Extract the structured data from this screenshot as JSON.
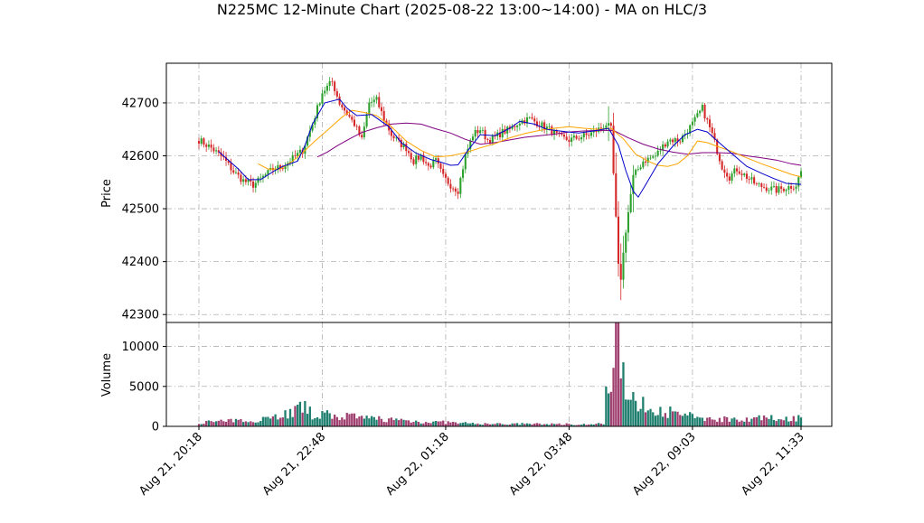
{
  "chart_data": {
    "type": "candlestick",
    "title": "N225MC 12-Minute Chart (2025-08-22 13:00~14:00) - MA on HLC/3",
    "price_panel": {
      "ylabel": "Price",
      "ylim": [
        42285,
        42775
      ],
      "yticks": [
        42300,
        42400,
        42500,
        42600,
        42700
      ],
      "grid": true
    },
    "volume_panel": {
      "ylabel": "Volume",
      "ylim": [
        0,
        13000
      ],
      "yticks": [
        0,
        5000,
        10000
      ],
      "grid": true
    },
    "x_tick_labels": [
      "Aug 21, 20:18",
      "Aug 21, 22:48",
      "Aug 22, 01:18",
      "Aug 22, 03:48",
      "Aug 22, 09:03",
      "Aug 22, 11:33"
    ],
    "colors": {
      "up": "#2ca02c",
      "down": "#d62728",
      "ma_short": "#0000cc",
      "ma_mid": "#ffa500",
      "ma_long": "#800080",
      "vol_up": "#1f7f6f",
      "vol_down": "#a04070"
    },
    "close_anchors": [
      [
        0,
        42630
      ],
      [
        5,
        42615
      ],
      [
        10,
        42595
      ],
      [
        14,
        42570
      ],
      [
        18,
        42553
      ],
      [
        22,
        42545
      ],
      [
        26,
        42560
      ],
      [
        30,
        42575
      ],
      [
        34,
        42580
      ],
      [
        38,
        42595
      ],
      [
        42,
        42610
      ],
      [
        46,
        42660
      ],
      [
        50,
        42720
      ],
      [
        54,
        42740
      ],
      [
        57,
        42700
      ],
      [
        60,
        42680
      ],
      [
        63,
        42660
      ],
      [
        66,
        42630
      ],
      [
        69,
        42700
      ],
      [
        72,
        42705
      ],
      [
        75,
        42670
      ],
      [
        78,
        42640
      ],
      [
        81,
        42625
      ],
      [
        84,
        42615
      ],
      [
        87,
        42590
      ],
      [
        90,
        42600
      ],
      [
        93,
        42580
      ],
      [
        96,
        42590
      ],
      [
        99,
        42560
      ],
      [
        102,
        42545
      ],
      [
        105,
        42535
      ],
      [
        108,
        42600
      ],
      [
        111,
        42640
      ],
      [
        114,
        42650
      ],
      [
        117,
        42630
      ],
      [
        120,
        42635
      ],
      [
        123,
        42645
      ],
      [
        126,
        42650
      ],
      [
        130,
        42665
      ],
      [
        134,
        42670
      ],
      [
        138,
        42660
      ],
      [
        142,
        42650
      ],
      [
        146,
        42635
      ],
      [
        150,
        42630
      ],
      [
        154,
        42635
      ],
      [
        158,
        42640
      ],
      [
        162,
        42650
      ],
      [
        165,
        42660
      ],
      [
        167,
        42650
      ],
      [
        169,
        42480
      ],
      [
        170,
        42390
      ],
      [
        171,
        42370
      ],
      [
        173,
        42460
      ],
      [
        176,
        42560
      ],
      [
        180,
        42590
      ],
      [
        185,
        42600
      ],
      [
        190,
        42630
      ],
      [
        195,
        42630
      ],
      [
        200,
        42660
      ],
      [
        204,
        42690
      ],
      [
        208,
        42640
      ],
      [
        212,
        42580
      ],
      [
        215,
        42560
      ],
      [
        218,
        42575
      ],
      [
        222,
        42560
      ],
      [
        226,
        42545
      ],
      [
        230,
        42540
      ],
      [
        234,
        42535
      ],
      [
        238,
        42540
      ],
      [
        242,
        42545
      ],
      [
        244,
        42570
      ]
    ],
    "ma_short_points": [
      [
        8,
        42608
      ],
      [
        16,
        42575
      ],
      [
        20,
        42555
      ],
      [
        25,
        42555
      ],
      [
        30,
        42570
      ],
      [
        34,
        42580
      ],
      [
        40,
        42590
      ],
      [
        43,
        42620
      ],
      [
        46,
        42660
      ],
      [
        51,
        42700
      ],
      [
        57,
        42707
      ],
      [
        60,
        42690
      ],
      [
        64,
        42676
      ],
      [
        70,
        42678
      ],
      [
        77,
        42655
      ],
      [
        82,
        42625
      ],
      [
        88,
        42605
      ],
      [
        94,
        42593
      ],
      [
        98,
        42588
      ],
      [
        102,
        42582
      ],
      [
        105,
        42583
      ],
      [
        109,
        42610
      ],
      [
        114,
        42640
      ],
      [
        120,
        42638
      ],
      [
        126,
        42652
      ],
      [
        130,
        42665
      ],
      [
        136,
        42660
      ],
      [
        141,
        42650
      ],
      [
        148,
        42646
      ],
      [
        154,
        42643
      ],
      [
        160,
        42647
      ],
      [
        166,
        42652
      ],
      [
        170,
        42620
      ],
      [
        173,
        42572
      ],
      [
        176,
        42533
      ],
      [
        178,
        42522
      ],
      [
        181,
        42545
      ],
      [
        186,
        42585
      ],
      [
        192,
        42618
      ],
      [
        197,
        42640
      ],
      [
        202,
        42650
      ],
      [
        206,
        42645
      ],
      [
        212,
        42620
      ],
      [
        217,
        42600
      ],
      [
        222,
        42580
      ],
      [
        228,
        42567
      ],
      [
        233,
        42557
      ],
      [
        238,
        42548
      ],
      [
        244,
        42546
      ]
    ],
    "ma_mid_points": [
      [
        24,
        42585
      ],
      [
        28,
        42575
      ],
      [
        33,
        42575
      ],
      [
        38,
        42590
      ],
      [
        43,
        42610
      ],
      [
        47,
        42628
      ],
      [
        52,
        42648
      ],
      [
        58,
        42673
      ],
      [
        62,
        42686
      ],
      [
        67,
        42682
      ],
      [
        72,
        42676
      ],
      [
        78,
        42655
      ],
      [
        84,
        42628
      ],
      [
        90,
        42610
      ],
      [
        96,
        42598
      ],
      [
        102,
        42600
      ],
      [
        108,
        42606
      ],
      [
        114,
        42615
      ],
      [
        120,
        42623
      ],
      [
        126,
        42634
      ],
      [
        132,
        42642
      ],
      [
        138,
        42648
      ],
      [
        144,
        42652
      ],
      [
        150,
        42655
      ],
      [
        156,
        42652
      ],
      [
        162,
        42650
      ],
      [
        167,
        42652
      ],
      [
        172,
        42632
      ],
      [
        177,
        42603
      ],
      [
        182,
        42590
      ],
      [
        186,
        42582
      ],
      [
        190,
        42580
      ],
      [
        194,
        42585
      ],
      [
        198,
        42600
      ],
      [
        202,
        42628
      ],
      [
        206,
        42625
      ],
      [
        210,
        42618
      ],
      [
        216,
        42608
      ],
      [
        222,
        42596
      ],
      [
        228,
        42585
      ],
      [
        234,
        42575
      ],
      [
        240,
        42565
      ],
      [
        244,
        42560
      ]
    ],
    "ma_long_points": [
      [
        48,
        42598
      ],
      [
        52,
        42607
      ],
      [
        56,
        42619
      ],
      [
        61,
        42632
      ],
      [
        66,
        42644
      ],
      [
        72,
        42653
      ],
      [
        78,
        42660
      ],
      [
        84,
        42662
      ],
      [
        90,
        42660
      ],
      [
        96,
        42651
      ],
      [
        102,
        42643
      ],
      [
        108,
        42631
      ],
      [
        114,
        42622
      ],
      [
        120,
        42625
      ],
      [
        126,
        42630
      ],
      [
        132,
        42635
      ],
      [
        138,
        42638
      ],
      [
        144,
        42641
      ],
      [
        150,
        42645
      ],
      [
        156,
        42647
      ],
      [
        162,
        42648
      ],
      [
        168,
        42648
      ],
      [
        174,
        42634
      ],
      [
        180,
        42622
      ],
      [
        186,
        42613
      ],
      [
        192,
        42607
      ],
      [
        198,
        42603
      ],
      [
        204,
        42606
      ],
      [
        210,
        42606
      ],
      [
        216,
        42605
      ],
      [
        222,
        42600
      ],
      [
        228,
        42596
      ],
      [
        234,
        42592
      ],
      [
        240,
        42585
      ],
      [
        244,
        42582
      ]
    ],
    "volume_anchors": [
      [
        0,
        500
      ],
      [
        10,
        650
      ],
      [
        20,
        700
      ],
      [
        30,
        1200
      ],
      [
        38,
        1800
      ],
      [
        42,
        2500
      ],
      [
        46,
        1500
      ],
      [
        50,
        1500
      ],
      [
        55,
        1300
      ],
      [
        60,
        1300
      ],
      [
        65,
        1000
      ],
      [
        70,
        1000
      ],
      [
        75,
        950
      ],
      [
        80,
        800
      ],
      [
        90,
        600
      ],
      [
        100,
        500
      ],
      [
        110,
        350
      ],
      [
        120,
        300
      ],
      [
        130,
        300
      ],
      [
        140,
        300
      ],
      [
        150,
        280
      ],
      [
        160,
        250
      ],
      [
        164,
        350
      ],
      [
        165,
        4000
      ],
      [
        167,
        3500
      ],
      [
        168,
        7000
      ],
      [
        169,
        9800
      ],
      [
        170,
        12800
      ],
      [
        171,
        10000
      ],
      [
        172,
        6800
      ],
      [
        174,
        4000
      ],
      [
        177,
        3000
      ],
      [
        180,
        2600
      ],
      [
        185,
        2300
      ],
      [
        190,
        1800
      ],
      [
        200,
        1200
      ],
      [
        210,
        900
      ],
      [
        220,
        1000
      ],
      [
        230,
        1000
      ],
      [
        240,
        1000
      ],
      [
        244,
        1100
      ]
    ]
  }
}
